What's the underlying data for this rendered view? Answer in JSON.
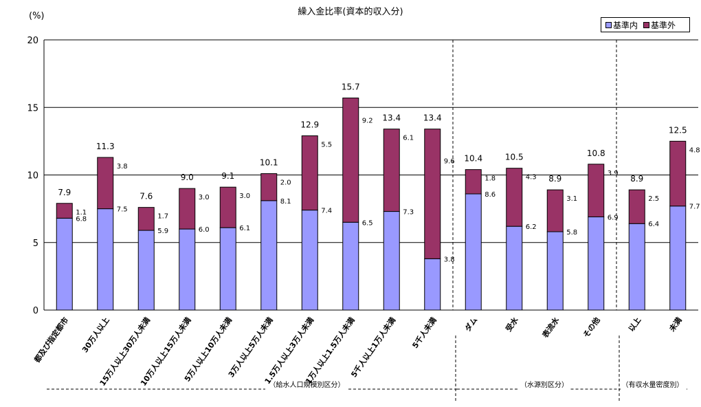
{
  "chart_data": {
    "type": "bar",
    "stacked": true,
    "title": "繰入金比率(資本的収入分)",
    "ylabel": "(%)",
    "ylim": [
      0,
      20
    ],
    "yticks": [
      0,
      5,
      10,
      15,
      20
    ],
    "grid": true,
    "legend_position": "top-right",
    "categories": [
      "都及び指定都市",
      "30万人以上",
      "15万人以上30万人未満",
      "10万人以上15万人未満",
      "5万人以上10万人未満",
      "3万人以上5万人未満",
      "1.5万人以上3万人未満",
      "1万人以上1.5万人未満",
      "5千人以上1万人未満",
      "5千人未満",
      "ダム",
      "受水",
      "表流水",
      "その他",
      "以上",
      "未満"
    ],
    "series": [
      {
        "name": "基準内",
        "color": "#9999ff",
        "values": [
          6.8,
          7.5,
          5.9,
          6.0,
          6.1,
          8.1,
          7.4,
          6.5,
          7.3,
          3.8,
          8.6,
          6.2,
          5.8,
          6.9,
          6.4,
          7.7
        ]
      },
      {
        "name": "基準外",
        "color": "#993366",
        "values": [
          1.1,
          3.8,
          1.7,
          3.0,
          3.0,
          2.0,
          5.5,
          9.2,
          6.1,
          9.6,
          1.8,
          4.3,
          3.1,
          3.9,
          2.5,
          4.8
        ]
      }
    ],
    "inner_labels": [
      "6.8",
      "7.5",
      "5.9",
      "6.0",
      "6.1",
      "8.1",
      "7.4",
      "6.5",
      "7.3",
      "3.8",
      "8.6",
      "6.2",
      "5.8",
      "6.9",
      "6.4",
      "7.7"
    ],
    "outer_labels": [
      "1.1",
      "3.8",
      "1.7",
      "3.0",
      "3.0",
      "2.0",
      "5.5",
      "9.2",
      "6.1",
      "9.6",
      "1.8",
      "4.3",
      "3.1",
      "3.9",
      "2.5",
      "4.8"
    ],
    "total_labels": [
      "7.9",
      "11.3",
      "7.6",
      "9.0",
      "9.1",
      "10.1",
      "12.9",
      "15.7",
      "13.4",
      "13.4",
      "10.4",
      "10.5",
      "8.9",
      "10.8",
      "8.9",
      "12.5"
    ],
    "groups": [
      {
        "label": "（給水人口規模別区分）",
        "start": 0,
        "end": 9
      },
      {
        "label": "（水源別区分）",
        "start": 10,
        "end": 13
      },
      {
        "label": "（有収水量密度別）",
        "start": 14,
        "end": 15
      }
    ]
  }
}
